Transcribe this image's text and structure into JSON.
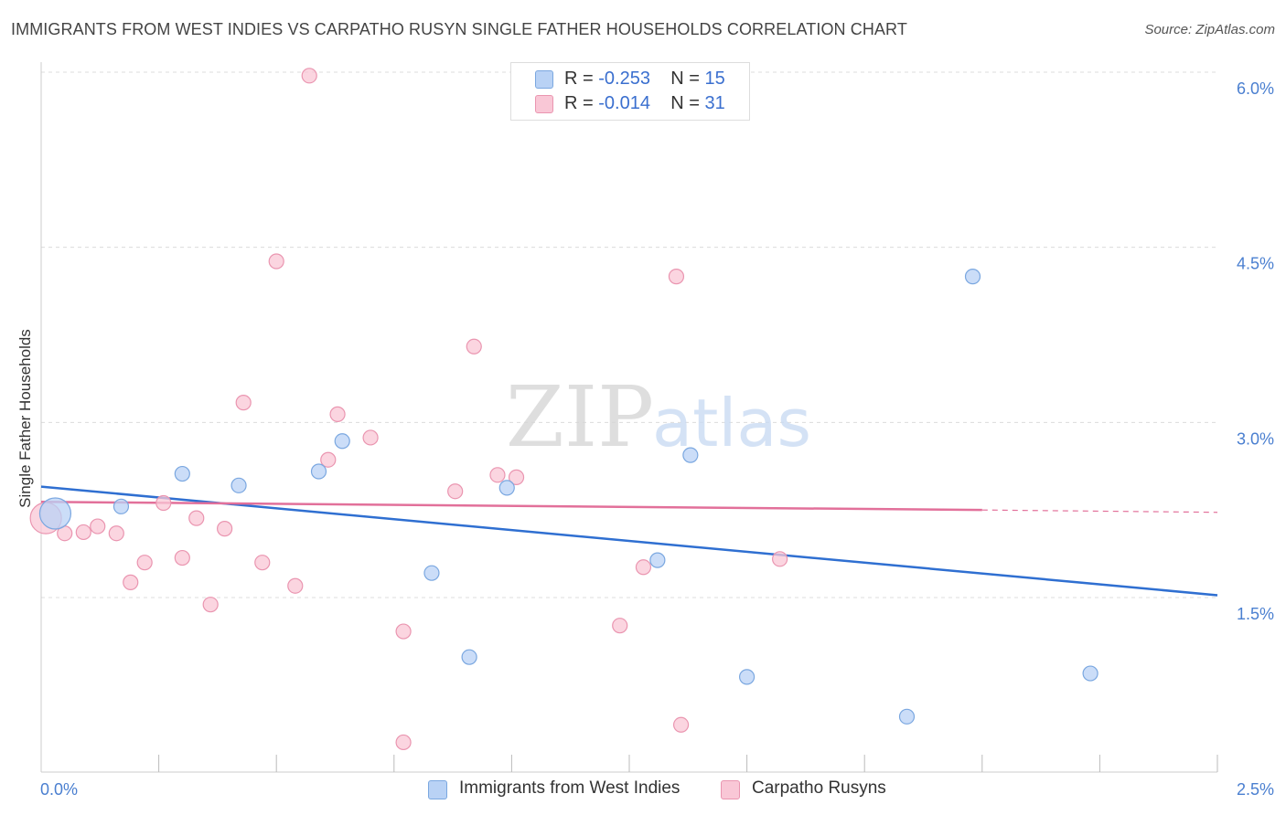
{
  "header": {
    "title": "IMMIGRANTS FROM WEST INDIES VS CARPATHO RUSYN SINGLE FATHER HOUSEHOLDS CORRELATION CHART",
    "source": "Source: ZipAtlas.com"
  },
  "watermark": {
    "zip": "ZIP",
    "atlas": "atlas"
  },
  "legend": {
    "r_label": "R =",
    "n_label": "N =",
    "rows": [
      {
        "r": "-0.253",
        "n": "15",
        "color": "#b9d2f5"
      },
      {
        "r": "-0.014",
        "n": "31",
        "color": "#f9c7d6"
      }
    ]
  },
  "colors": {
    "blue_fill": "#b9d2f5",
    "blue_stroke": "#7aa7e0",
    "blue_line": "#2f6fd1",
    "pink_fill": "#f9c7d6",
    "pink_stroke": "#ea95b0",
    "pink_line": "#e2709a",
    "tick_text": "#4a7fd0",
    "grid": "#dcdcdc"
  },
  "chart_data": {
    "type": "scatter",
    "title": "IMMIGRANTS FROM WEST INDIES VS CARPATHO RUSYN SINGLE FATHER HOUSEHOLDS CORRELATION CHART",
    "xlabel": "",
    "ylabel": "Single Father Households",
    "xlim": [
      0,
      2.5
    ],
    "ylim": [
      0,
      6.2
    ],
    "x_tick_labels": [
      "0.0%",
      "2.5%"
    ],
    "y_ticks": [
      {
        "value": 1.5,
        "label": "1.5%"
      },
      {
        "value": 3.0,
        "label": "3.0%"
      },
      {
        "value": 4.5,
        "label": "4.5%"
      },
      {
        "value": 6.0,
        "label": "6.0%"
      }
    ],
    "legend_position": "top-center",
    "series": [
      {
        "name": "Immigrants from West Indies",
        "color": "#b9d2f5",
        "points": [
          {
            "x": 0.03,
            "y": 2.22,
            "big": true
          },
          {
            "x": 0.17,
            "y": 2.28
          },
          {
            "x": 0.3,
            "y": 2.56
          },
          {
            "x": 0.42,
            "y": 2.46
          },
          {
            "x": 0.59,
            "y": 2.58
          },
          {
            "x": 0.64,
            "y": 2.84
          },
          {
            "x": 0.83,
            "y": 1.71
          },
          {
            "x": 0.91,
            "y": 0.99
          },
          {
            "x": 0.99,
            "y": 2.44
          },
          {
            "x": 1.31,
            "y": 1.82
          },
          {
            "x": 1.38,
            "y": 2.72
          },
          {
            "x": 1.5,
            "y": 0.82
          },
          {
            "x": 1.84,
            "y": 0.48
          },
          {
            "x": 1.98,
            "y": 4.25
          },
          {
            "x": 2.23,
            "y": 0.85
          }
        ],
        "trend": {
          "x0": 0.0,
          "y0": 2.45,
          "x1": 2.5,
          "y1": 1.52
        }
      },
      {
        "name": "Carpatho Rusyns",
        "color": "#f9c7d6",
        "points": [
          {
            "x": 0.01,
            "y": 2.18,
            "big": true
          },
          {
            "x": 0.05,
            "y": 2.05
          },
          {
            "x": 0.09,
            "y": 2.06
          },
          {
            "x": 0.12,
            "y": 2.11
          },
          {
            "x": 0.16,
            "y": 2.05
          },
          {
            "x": 0.19,
            "y": 1.63
          },
          {
            "x": 0.22,
            "y": 1.8
          },
          {
            "x": 0.26,
            "y": 2.31
          },
          {
            "x": 0.3,
            "y": 1.84
          },
          {
            "x": 0.33,
            "y": 2.18
          },
          {
            "x": 0.36,
            "y": 1.44
          },
          {
            "x": 0.39,
            "y": 2.09
          },
          {
            "x": 0.43,
            "y": 3.17
          },
          {
            "x": 0.47,
            "y": 1.8
          },
          {
            "x": 0.5,
            "y": 4.38
          },
          {
            "x": 0.54,
            "y": 1.6
          },
          {
            "x": 0.57,
            "y": 5.97
          },
          {
            "x": 0.61,
            "y": 2.68
          },
          {
            "x": 0.63,
            "y": 3.07
          },
          {
            "x": 0.7,
            "y": 2.87
          },
          {
            "x": 0.77,
            "y": 0.26
          },
          {
            "x": 0.77,
            "y": 1.21
          },
          {
            "x": 0.88,
            "y": 2.41
          },
          {
            "x": 0.92,
            "y": 3.65
          },
          {
            "x": 0.97,
            "y": 2.55
          },
          {
            "x": 1.01,
            "y": 2.53
          },
          {
            "x": 1.23,
            "y": 1.26
          },
          {
            "x": 1.28,
            "y": 1.76
          },
          {
            "x": 1.35,
            "y": 4.25
          },
          {
            "x": 1.36,
            "y": 0.41
          },
          {
            "x": 1.57,
            "y": 1.83
          }
        ],
        "trend": {
          "x0": 0.0,
          "y0": 2.32,
          "x1": 2.0,
          "y1": 2.25,
          "dash_to_x": 2.5,
          "dash_to_y": 2.23
        }
      }
    ]
  }
}
